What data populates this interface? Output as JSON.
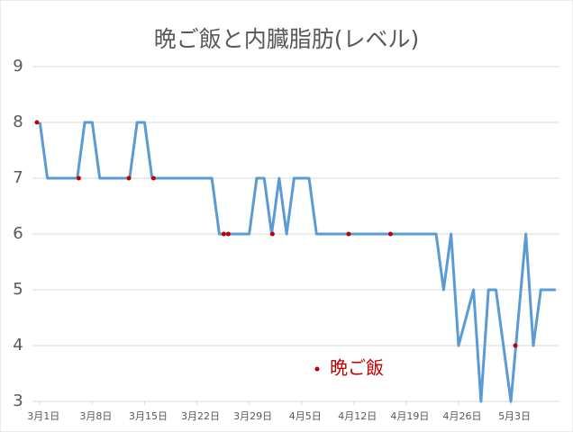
{
  "chart_data": {
    "type": "line",
    "title": "晩ご飯と内臓脂肪(レベル)",
    "xlim": [
      -1,
      69.5
    ],
    "xticks": [
      {
        "value": 0,
        "label": "3月1日"
      },
      {
        "value": 7,
        "label": "3月8日"
      },
      {
        "value": 14,
        "label": "3月15日"
      },
      {
        "value": 21,
        "label": "3月22日"
      },
      {
        "value": 28,
        "label": "3月29日"
      },
      {
        "value": 35,
        "label": "4月5日"
      },
      {
        "value": 42,
        "label": "4月12日"
      },
      {
        "value": 49,
        "label": "4月19日"
      },
      {
        "value": 56,
        "label": "4月26日"
      },
      {
        "value": 63,
        "label": "5月3日"
      }
    ],
    "ylim": [
      3,
      9
    ],
    "yticks": [
      3,
      4,
      5,
      6,
      7,
      8,
      9
    ],
    "grid": true,
    "legend": "inside",
    "series": [
      {
        "type": "line",
        "color": "#5b9bd5",
        "x": [
          0,
          1,
          2,
          3,
          4,
          5,
          6,
          7,
          8,
          9,
          10,
          11,
          12,
          13,
          14,
          15,
          16,
          17,
          18,
          19,
          20,
          21,
          22,
          23,
          24,
          25,
          26,
          27,
          28,
          29,
          30,
          31,
          32,
          33,
          34,
          35,
          36,
          37,
          38,
          39,
          40,
          41,
          42,
          43,
          44,
          45,
          46,
          47,
          48,
          49,
          50,
          51,
          52,
          53,
          54,
          55,
          56,
          57,
          58,
          59,
          60,
          61,
          62,
          63,
          64,
          65,
          66,
          67,
          68,
          69
        ],
        "values": [
          8,
          7,
          7,
          7,
          7,
          7,
          8,
          8,
          7,
          7,
          7,
          7,
          7,
          8,
          8,
          7,
          7,
          7,
          7,
          7,
          7,
          7,
          7,
          7,
          6,
          6,
          6,
          6,
          6,
          7,
          7,
          6,
          7,
          6,
          7,
          7,
          7,
          6,
          6,
          6,
          6,
          6,
          6,
          6,
          6,
          6,
          6,
          6,
          6,
          6,
          6,
          6,
          6,
          6,
          5,
          6,
          4,
          4.5,
          5,
          3,
          5,
          5,
          4,
          3,
          4.5,
          6,
          4,
          5,
          5,
          5
        ]
      },
      {
        "name": "晩ご飯",
        "type": "scatter",
        "color": "#c00000",
        "x": [
          -0.4,
          5.2,
          11.9,
          15.2,
          24.6,
          25.2,
          31.1,
          41.3,
          46.9,
          63.6
        ],
        "values": [
          8,
          7,
          7,
          7,
          6,
          6,
          6,
          6,
          6,
          4
        ]
      }
    ]
  }
}
